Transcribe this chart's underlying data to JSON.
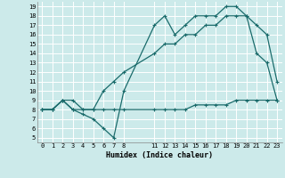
{
  "xlabel": "Humidex (Indice chaleur)",
  "background_color": "#cceaea",
  "line_color": "#1a6b6b",
  "grid_color": "#ffffff",
  "xlim": [
    -0.5,
    23.5
  ],
  "ylim": [
    4.5,
    19.5
  ],
  "xtick_positions": [
    0,
    1,
    2,
    3,
    4,
    5,
    6,
    7,
    8,
    11,
    12,
    13,
    14,
    15,
    16,
    17,
    18,
    19,
    20,
    21,
    22,
    23
  ],
  "xtick_labels": [
    "0",
    "1",
    "2",
    "3",
    "4",
    "5",
    "6",
    "7",
    "8",
    "11",
    "12",
    "13",
    "14",
    "15",
    "16",
    "17",
    "18",
    "19",
    "20",
    "21",
    "22",
    "23"
  ],
  "ytick_positions": [
    5,
    6,
    7,
    8,
    9,
    10,
    11,
    12,
    13,
    14,
    15,
    16,
    17,
    18,
    19
  ],
  "ytick_labels": [
    "5",
    "6",
    "7",
    "8",
    "9",
    "10",
    "11",
    "12",
    "13",
    "14",
    "15",
    "16",
    "17",
    "18",
    "19"
  ],
  "line1_x": [
    0,
    1,
    2,
    3,
    4,
    5,
    6,
    7,
    8,
    11,
    12,
    13,
    14,
    15,
    16,
    17,
    18,
    19,
    20,
    21,
    22,
    23
  ],
  "line1_y": [
    8,
    8,
    9,
    8,
    8,
    8,
    8,
    8,
    8,
    8,
    8,
    8,
    8,
    8.5,
    8.5,
    8.5,
    8.5,
    9,
    9,
    9,
    9,
    9
  ],
  "line2_x": [
    0,
    1,
    2,
    3,
    4,
    5,
    6,
    7,
    8,
    11,
    12,
    13,
    14,
    15,
    16,
    17,
    18,
    19,
    20,
    21,
    22,
    23
  ],
  "line2_y": [
    8,
    8,
    9,
    9,
    8,
    8,
    10,
    11,
    12,
    14,
    15,
    15,
    16,
    16,
    17,
    17,
    18,
    18,
    18,
    17,
    16,
    11
  ],
  "line3_x": [
    0,
    1,
    2,
    3,
    4,
    5,
    6,
    7,
    8,
    11,
    12,
    13,
    14,
    15,
    16,
    17,
    18,
    19,
    20,
    21,
    22,
    23
  ],
  "line3_y": [
    8,
    8,
    9,
    8,
    7.5,
    7,
    6,
    5,
    10,
    17,
    18,
    16,
    17,
    18,
    18,
    18,
    19,
    19,
    18,
    14,
    13,
    9
  ]
}
